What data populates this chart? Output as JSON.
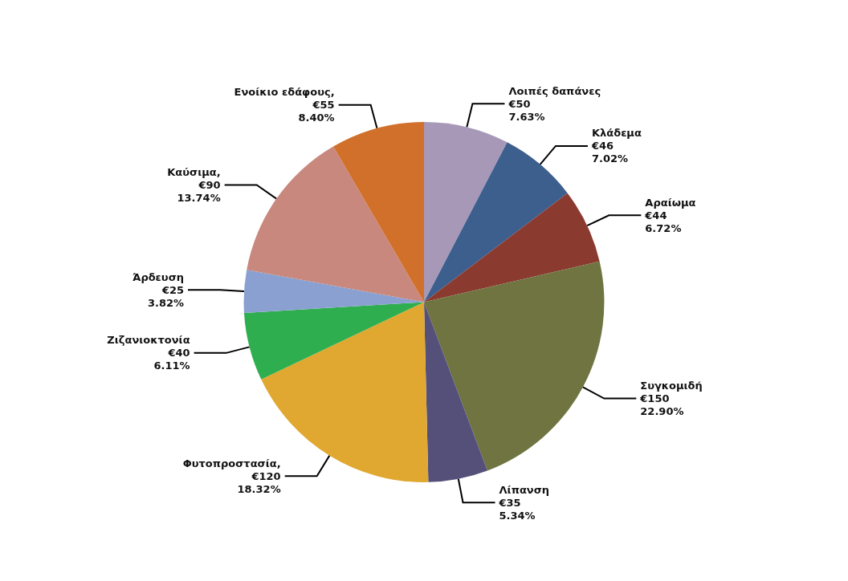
{
  "chart_data": {
    "type": "pie",
    "categories": [
      "Λοιπές δαπάνες",
      "Κλάδεμα",
      "Αραίωμα",
      "Συγκομιδή",
      "Λίπανση",
      "Φυτοπροστασία",
      "Ζιζανιοκτονία",
      "Άρδευση",
      "Καύσιμα",
      "Ενοίκιο εδάφους"
    ],
    "values": [
      50,
      46,
      44,
      150,
      35,
      120,
      40,
      25,
      90,
      55
    ],
    "value_labels": [
      "\n€50\n7.63%",
      "\n€46\n7.02%",
      "\n€44\n6.72%",
      "\n€150\n22.90%",
      "\n€35\n5.34%",
      ",\n€120\n18.32%",
      "\n€40\n6.11%",
      "\n€25\n3.82%",
      ",\n€90\n13.74%",
      ",\n€55\n8.40%"
    ],
    "colors": [
      "#a898b8",
      "#3d5f8e",
      "#8b3a30",
      "#6f7440",
      "#55507a",
      "#e0a830",
      "#2fae4f",
      "#8aa0d0",
      "#c8887e",
      "#d0702a"
    ],
    "legend": false
  }
}
